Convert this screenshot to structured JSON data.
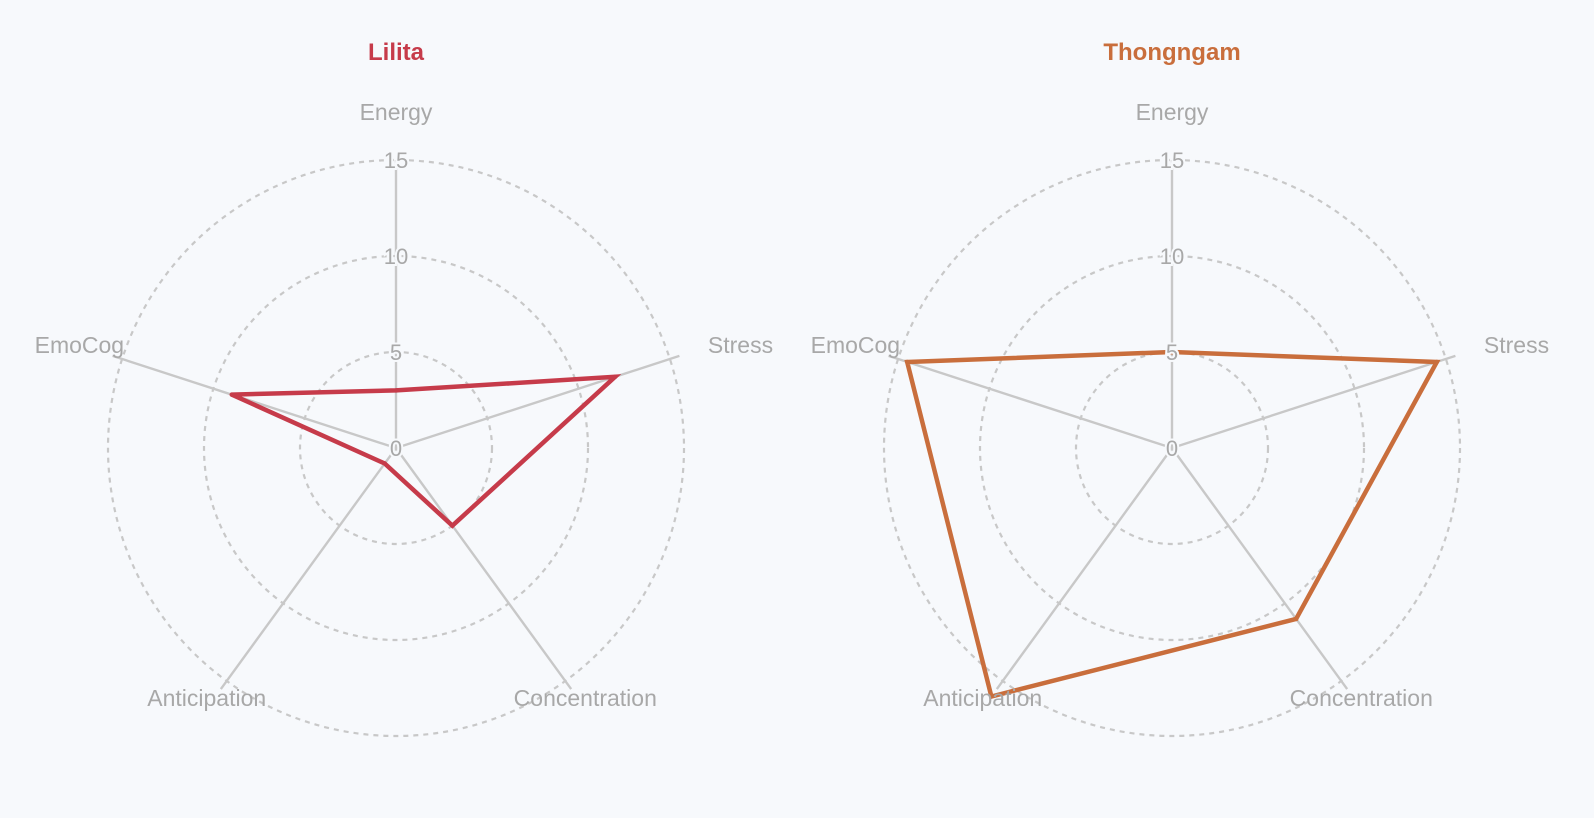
{
  "chart_data": [
    {
      "type": "radar",
      "title": "Lilita",
      "color": "#c63b4a",
      "axes": [
        "Energy",
        "Stress",
        "Concentration",
        "Anticipation",
        "EmoCog"
      ],
      "values": [
        3,
        12,
        5,
        1,
        9
      ],
      "ticks": [
        0,
        5,
        10,
        15
      ],
      "rmax": 15,
      "ring_values": [
        5,
        10,
        15
      ]
    },
    {
      "type": "radar",
      "title": "Thongngam",
      "color": "#c96e3c",
      "axes": [
        "Energy",
        "Stress",
        "Concentration",
        "Anticipation",
        "EmoCog"
      ],
      "values": [
        5,
        14.5,
        11,
        16,
        14.5
      ],
      "ticks": [
        0,
        5,
        10,
        15
      ],
      "rmax": 15,
      "ring_values": [
        5,
        10,
        15
      ]
    }
  ]
}
